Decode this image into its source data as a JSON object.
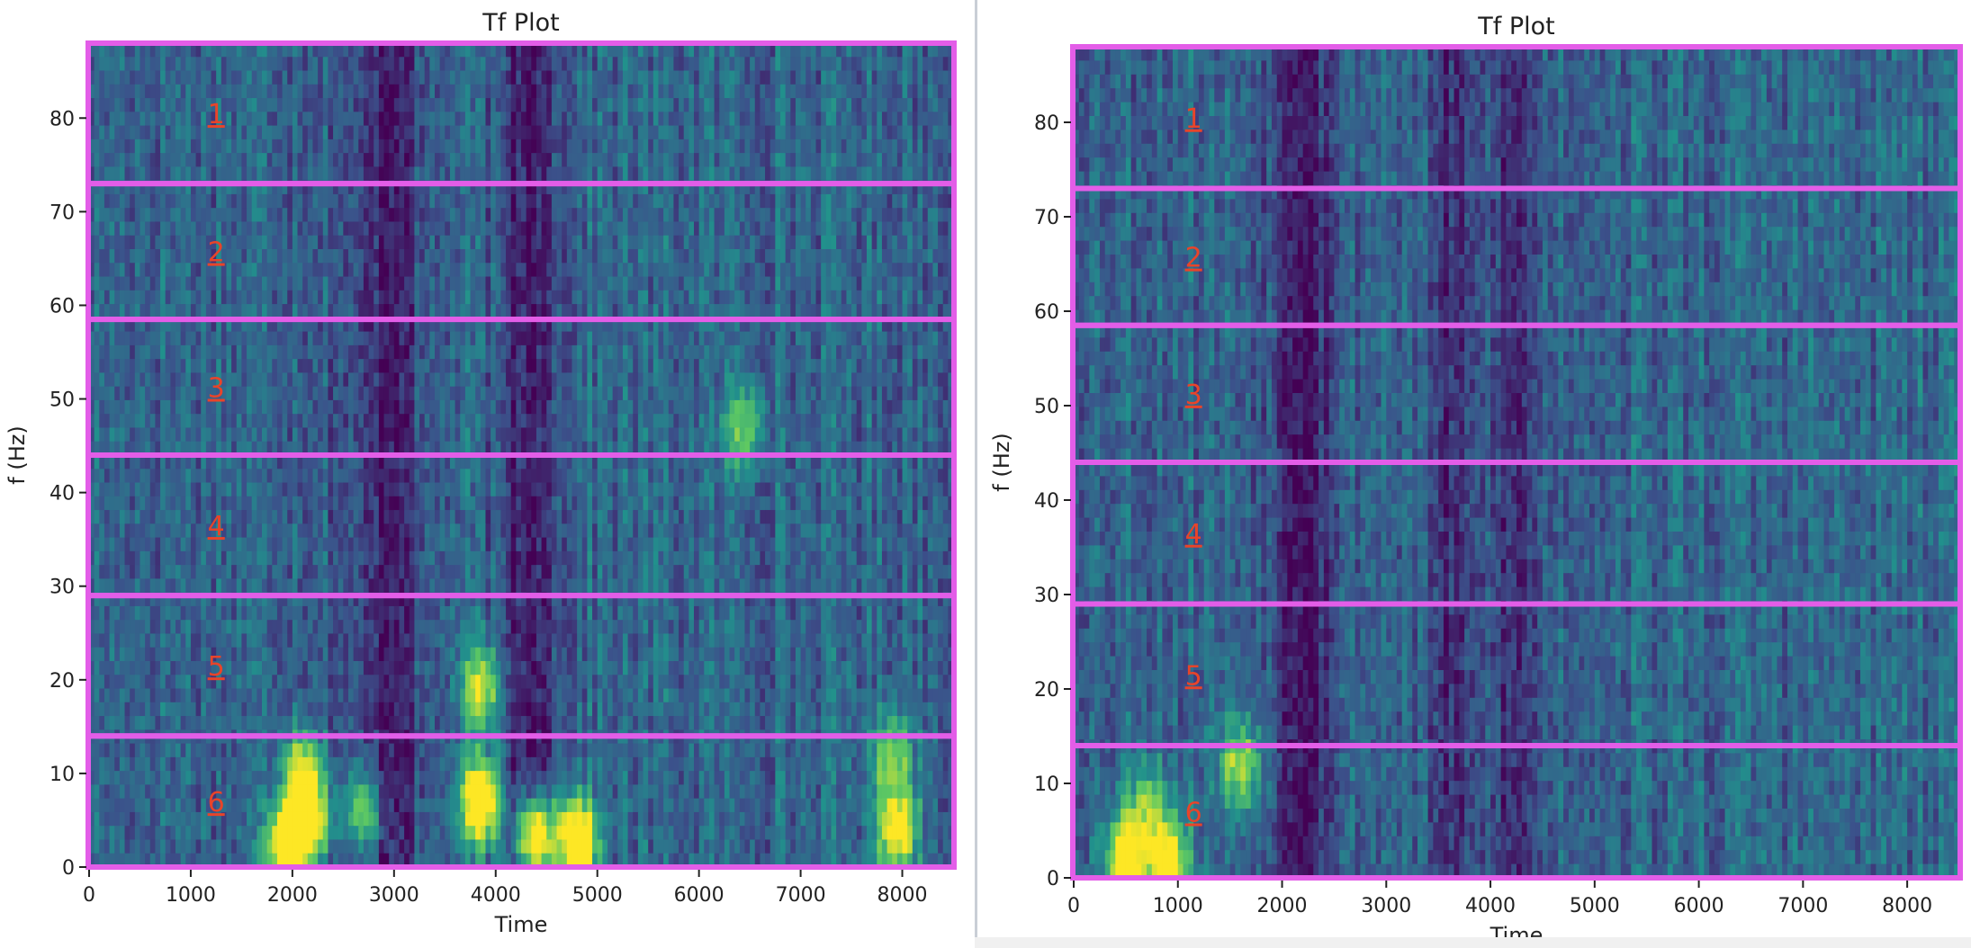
{
  "chart_data": [
    {
      "type": "heatmap",
      "title": "Tf Plot",
      "xlabel": "Time",
      "ylabel": "f (Hz)",
      "xlim": [
        0,
        8500
      ],
      "ylim": [
        0,
        88
      ],
      "xticks": [
        0,
        1000,
        2000,
        3000,
        4000,
        5000,
        6000,
        7000,
        8000
      ],
      "yticks": [
        0,
        10,
        20,
        30,
        40,
        50,
        60,
        70,
        80
      ],
      "colormap": "viridis",
      "colormap_stops": [
        "#440154",
        "#3b528b",
        "#21918c",
        "#5ec962",
        "#fde725"
      ],
      "band_color": "#e35de8",
      "band_label_color": "#e8442a",
      "bands": [
        {
          "label": "1",
          "f_low": 73,
          "f_high": 88
        },
        {
          "label": "2",
          "f_low": 58.5,
          "f_high": 73
        },
        {
          "label": "3",
          "f_low": 44,
          "f_high": 58.5
        },
        {
          "label": "4",
          "f_low": 29,
          "f_high": 44
        },
        {
          "label": "5",
          "f_low": 14,
          "f_high": 29
        },
        {
          "label": "6",
          "f_low": 0,
          "f_high": 14
        }
      ],
      "band_label_time": 1250,
      "hotspots": [
        {
          "t": 1950,
          "f": 2,
          "intensity": 1.0
        },
        {
          "t": 2150,
          "f": 5,
          "intensity": 0.85
        },
        {
          "t": 2100,
          "f": 10,
          "intensity": 0.65
        },
        {
          "t": 2700,
          "f": 6,
          "intensity": 0.55
        },
        {
          "t": 3850,
          "f": 7,
          "intensity": 0.95
        },
        {
          "t": 3850,
          "f": 19,
          "intensity": 0.6
        },
        {
          "t": 4400,
          "f": 3,
          "intensity": 1.0
        },
        {
          "t": 4800,
          "f": 3,
          "intensity": 1.0
        },
        {
          "t": 7950,
          "f": 4,
          "intensity": 0.85
        },
        {
          "t": 7900,
          "f": 12,
          "intensity": 0.5
        },
        {
          "t": 6450,
          "f": 47,
          "intensity": 0.5
        }
      ],
      "dark_zones": [
        {
          "t": 2900,
          "f": 25,
          "width": 400
        },
        {
          "t": 4300,
          "f": 38,
          "width": 300
        }
      ]
    },
    {
      "type": "heatmap",
      "title": "Tf Plot",
      "xlabel": "Time",
      "ylabel": "f (Hz)",
      "xlim": [
        0,
        8500
      ],
      "ylim": [
        0,
        88
      ],
      "xticks": [
        0,
        1000,
        2000,
        3000,
        4000,
        5000,
        6000,
        7000,
        8000
      ],
      "yticks": [
        0,
        10,
        20,
        30,
        40,
        50,
        60,
        70,
        80
      ],
      "colormap": "viridis",
      "colormap_stops": [
        "#440154",
        "#3b528b",
        "#21918c",
        "#5ec962",
        "#fde725"
      ],
      "band_color": "#e35de8",
      "band_label_color": "#e8442a",
      "bands": [
        {
          "label": "1",
          "f_low": 73,
          "f_high": 88
        },
        {
          "label": "2",
          "f_low": 58.5,
          "f_high": 73
        },
        {
          "label": "3",
          "f_low": 44,
          "f_high": 58.5
        },
        {
          "label": "4",
          "f_low": 29,
          "f_high": 44
        },
        {
          "label": "5",
          "f_low": 14,
          "f_high": 29
        },
        {
          "label": "6",
          "f_low": 0,
          "f_high": 14
        }
      ],
      "band_label_time": 1150,
      "hotspots": [
        {
          "t": 500,
          "f": 2,
          "intensity": 0.85
        },
        {
          "t": 900,
          "f": 2,
          "intensity": 0.85
        },
        {
          "t": 700,
          "f": 8,
          "intensity": 0.45
        },
        {
          "t": 1600,
          "f": 12,
          "intensity": 0.6
        }
      ],
      "dark_zones": [
        {
          "t": 3650,
          "f": 44,
          "width": 250
        },
        {
          "t": 4250,
          "f": 44,
          "width": 200
        },
        {
          "t": 2200,
          "f": 5,
          "width": 300
        }
      ]
    }
  ]
}
